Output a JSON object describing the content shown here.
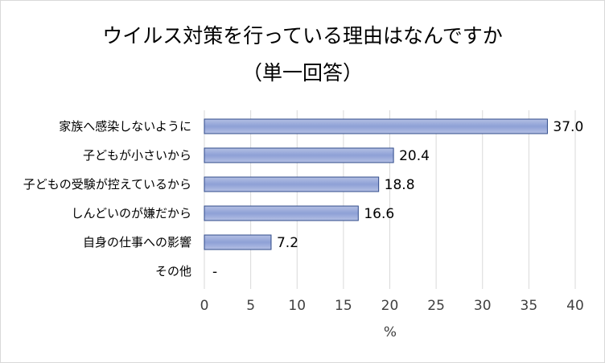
{
  "chart_data": {
    "type": "bar",
    "orientation": "horizontal",
    "title": "ウイルス対策を行っている理由はなんですか",
    "subtitle": "（単一回答）",
    "xlabel": "%",
    "ylabel": "",
    "categories": [
      "家族へ感染しないように",
      "子どもが小さいから",
      "子どもの受験が控えているから",
      "しんどいのが嫌だから",
      "自身の仕事への影響",
      "その他"
    ],
    "values": [
      37.0,
      20.4,
      18.8,
      16.6,
      7.2,
      null
    ],
    "data_labels": [
      "37.0",
      "20.4",
      "18.8",
      "16.6",
      "7.2",
      "-"
    ],
    "xlim": [
      0,
      40
    ],
    "xticks": [
      0,
      5,
      10,
      15,
      20,
      25,
      30,
      35,
      40
    ],
    "grid": true,
    "legend": "none",
    "colors": {
      "bar_fill_top": "#b4c0e4",
      "bar_fill_mid": "#8ea0d6",
      "bar_fill_bottom": "#b4c0e4",
      "bar_stroke": "#2f4a8a",
      "grid": "#d9d9d9"
    }
  }
}
